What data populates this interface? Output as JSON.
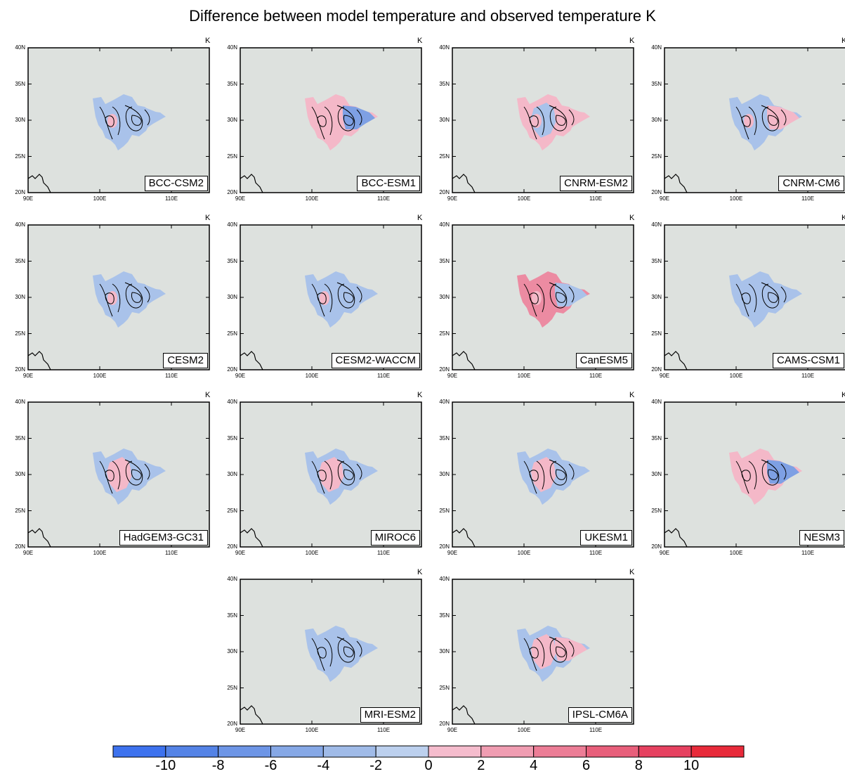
{
  "title": "Difference between model temperature and observed temperature  K",
  "unit": "K",
  "lat_ticks": [
    "40N",
    "35N",
    "30N",
    "25N",
    "20N"
  ],
  "lon_ticks": [
    "90E",
    "100E",
    "110E"
  ],
  "panels": [
    {
      "label": "BCC-CSM2",
      "west": "b",
      "center": "b",
      "east": "b",
      "pos_lobe": true
    },
    {
      "label": "BCC-ESM1",
      "west": "r",
      "center": "r",
      "east": "B",
      "pos_lobe": true
    },
    {
      "label": "CNRM-ESM2",
      "west": "r",
      "center": "b",
      "east": "r",
      "pos_lobe": true
    },
    {
      "label": "CNRM-CM6",
      "west": "b",
      "center": "b",
      "east": "r",
      "pos_lobe": true
    },
    {
      "label": "CESM2",
      "west": "b",
      "center": "b",
      "east": "b",
      "pos_lobe": true
    },
    {
      "label": "CESM2-WACCM",
      "west": "b",
      "center": "b",
      "east": "b",
      "pos_lobe": true
    },
    {
      "label": "CanESM5",
      "west": "R",
      "center": "R",
      "east": "b",
      "pos_lobe": true
    },
    {
      "label": "CAMS-CSM1",
      "west": "b",
      "center": "b",
      "east": "b",
      "pos_lobe": false
    },
    {
      "label": "HadGEM3-GC31",
      "west": "b",
      "center": "r",
      "east": "b",
      "pos_lobe": true
    },
    {
      "label": "MIROC6",
      "west": "b",
      "center": "r",
      "east": "b",
      "pos_lobe": true
    },
    {
      "label": "UKESM1",
      "west": "b",
      "center": "r",
      "east": "b",
      "pos_lobe": true
    },
    {
      "label": "NESM3",
      "west": "r",
      "center": "r",
      "east": "B",
      "pos_lobe": true
    },
    {
      "label": "MRI-ESM2",
      "west": "b",
      "center": "b",
      "east": "b",
      "pos_lobe": false
    },
    {
      "label": "IPSL-CM6A",
      "west": "b",
      "center": "r",
      "east": "r",
      "pos_lobe": true
    }
  ],
  "colorbar": {
    "colors": [
      "#3d72ee",
      "#5483e6",
      "#6d95e6",
      "#86a8e6",
      "#a0bbe8",
      "#bcd0ee",
      "#f5bccd",
      "#f09db2",
      "#ec7d96",
      "#e85f7b",
      "#e64160",
      "#e82a3a"
    ],
    "labels": [
      "-10",
      "-8",
      "-6",
      "-4",
      "-2",
      "0",
      "2",
      "4",
      "6",
      "8",
      "10"
    ]
  },
  "colors": {
    "ocean": "#dde1de",
    "neg_light": "#a9c2ea",
    "neg_mid": "#7ea0e4",
    "neg_dark": "#4f7de2",
    "pos_light": "#f4b8c8",
    "pos_mid": "#ec8ba2"
  }
}
